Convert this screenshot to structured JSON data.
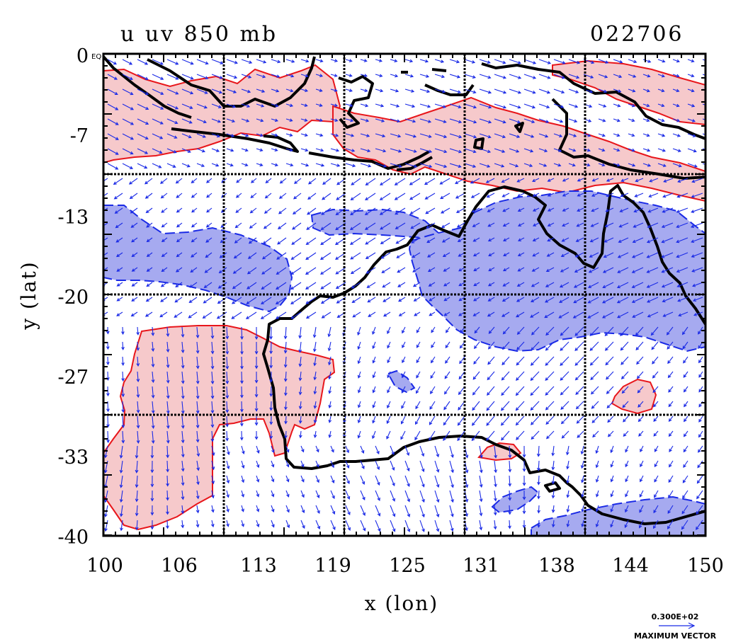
{
  "header": {
    "title": "u uv 850 mb",
    "timestamp": "022706"
  },
  "axes": {
    "xlabel": "x (lon)",
    "ylabel": "y (lat)",
    "xticks": [
      "100",
      "106",
      "113",
      "119",
      "125",
      "131",
      "138",
      "144",
      "150"
    ],
    "yticks": [
      "0",
      "-7",
      "-13",
      "-20",
      "-27",
      "-33",
      "-40"
    ],
    "corner_label": "EQ",
    "xlim": [
      100,
      150
    ],
    "ylim": [
      -40,
      0
    ]
  },
  "legend": {
    "vector_value": "0.300E+02",
    "vector_caption": "MAXIMUM VECTOR"
  },
  "colors": {
    "positive_fill": "#f6c9cb",
    "positive_line": "#e8161b",
    "negative_fill": "#a6aaf0",
    "negative_line": "#1a2ae6",
    "vector": "#1a2ae6",
    "coast": "#000000",
    "grid": "#000000"
  }
}
